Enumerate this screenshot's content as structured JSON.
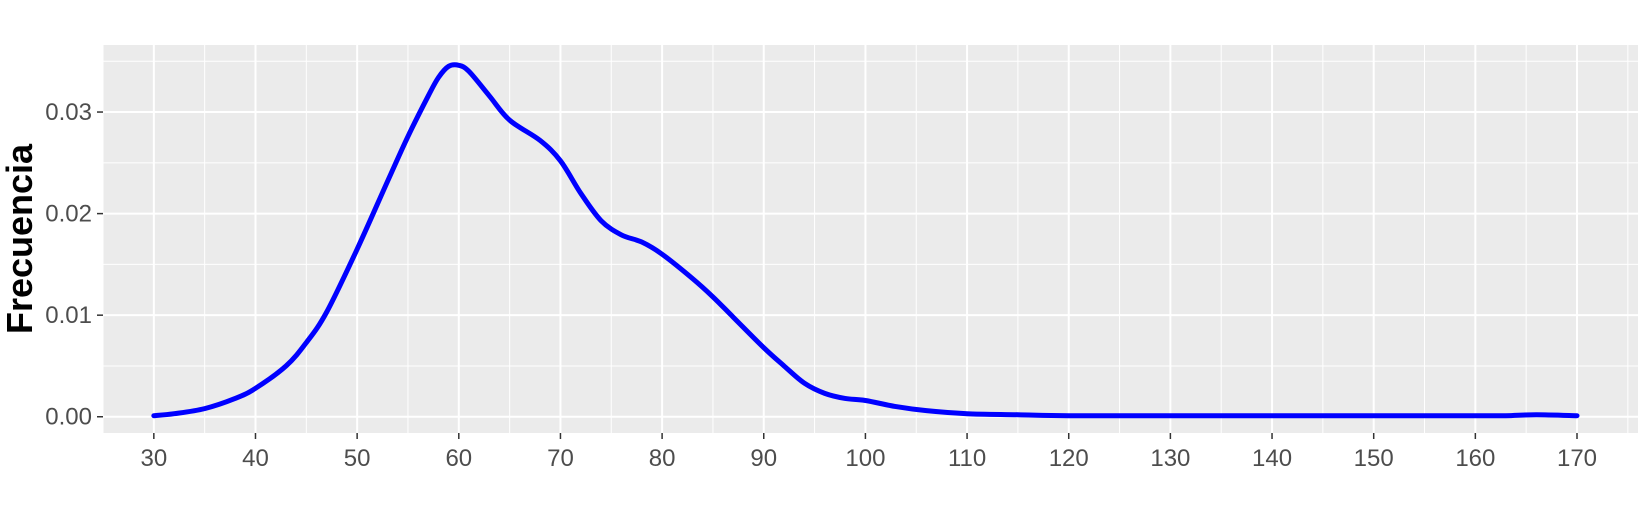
{
  "chart_data": {
    "type": "line",
    "title": "",
    "xlabel": "",
    "ylabel": "Frecuencia",
    "xlim": [
      25,
      176
    ],
    "ylim": [
      -0.0016,
      0.0366
    ],
    "x_ticks": [
      30,
      40,
      50,
      60,
      70,
      80,
      90,
      100,
      110,
      120,
      130,
      140,
      150,
      160,
      170
    ],
    "y_ticks": [
      0.0,
      0.01,
      0.02,
      0.03
    ],
    "y_tick_labels": [
      "0.00",
      "0.01",
      "0.02",
      "0.03"
    ],
    "grid": true,
    "legend": "none",
    "series": [
      {
        "color": "#0000ff",
        "x": [
          30,
          32,
          35,
          38,
          40,
          43,
          45,
          47,
          50,
          53,
          55,
          57,
          58,
          59,
          60,
          61,
          63,
          65,
          68,
          70,
          72,
          74,
          76,
          78,
          80,
          83,
          85,
          87,
          90,
          92,
          94,
          96,
          98,
          100,
          103,
          106,
          110,
          115,
          120,
          130,
          140,
          150,
          160,
          163,
          166,
          170
        ],
        "y": [
          0.0001,
          0.0003,
          0.0008,
          0.0018,
          0.0028,
          0.005,
          0.0073,
          0.0103,
          0.0165,
          0.0232,
          0.0276,
          0.0316,
          0.0334,
          0.0345,
          0.0346,
          0.034,
          0.0316,
          0.0292,
          0.0272,
          0.0252,
          0.022,
          0.0193,
          0.0179,
          0.0172,
          0.016,
          0.0136,
          0.0118,
          0.0098,
          0.0068,
          0.005,
          0.0033,
          0.0023,
          0.0018,
          0.0016,
          0.001,
          0.0006,
          0.0003,
          0.0002,
          0.0001,
          0.0001,
          0.0001,
          0.0001,
          0.0001,
          0.0001,
          0.0002,
          0.0001
        ]
      }
    ]
  }
}
